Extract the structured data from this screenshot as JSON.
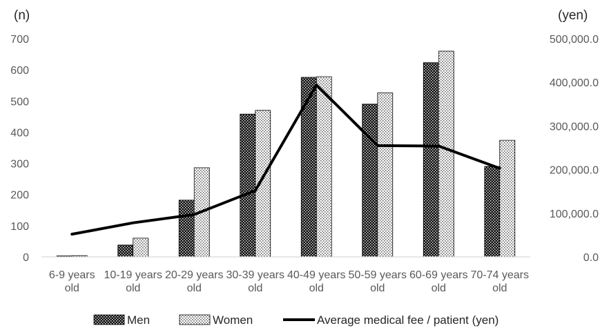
{
  "chart_data": {
    "type": "bar",
    "categories": [
      "6-9 years old",
      "10-19 years old",
      "20-29 years old",
      "30-39 years old",
      "40-49 years old",
      "50-59 years old",
      "60-69 years old",
      "70-74 years old"
    ],
    "category_lines": [
      [
        "6-9 years",
        "old"
      ],
      [
        "10-19 years",
        "old"
      ],
      [
        "20-29 years",
        "old"
      ],
      [
        "30-39 years",
        "old"
      ],
      [
        "40-49 years",
        "old"
      ],
      [
        "50-59 years",
        "old"
      ],
      [
        "60-69 years",
        "old"
      ],
      [
        "70-74 years",
        "old"
      ]
    ],
    "series": [
      {
        "name": "Men",
        "type": "bar",
        "axis": "left",
        "pattern": "dark-dotted",
        "values": [
          3,
          38,
          182,
          458,
          576,
          490,
          623,
          290
        ]
      },
      {
        "name": "Women",
        "type": "bar",
        "axis": "left",
        "pattern": "light-dotted",
        "values": [
          4,
          60,
          286,
          470,
          578,
          526,
          660,
          374
        ]
      },
      {
        "name": "Average medical fee / patient (yen)",
        "type": "line",
        "axis": "right",
        "color": "#000000",
        "values": [
          52000,
          78000,
          97000,
          152000,
          394000,
          255000,
          254000,
          203000
        ]
      }
    ],
    "y_left": {
      "unit_label": "(n)",
      "min": 0,
      "max": 700,
      "step": 100,
      "ticks": [
        "0",
        "100",
        "200",
        "300",
        "400",
        "500",
        "600",
        "700"
      ]
    },
    "y_right": {
      "unit_label": "(yen)",
      "min": 0,
      "max": 500000,
      "step": 100000,
      "ticks": [
        "0.0",
        "100,000.0",
        "200,000.0",
        "300,000.0",
        "400,000.0",
        "500,000.0"
      ]
    },
    "grid": false,
    "legend_position": "bottom",
    "legend": [
      "Men",
      "Women",
      "Average medical fee / patient (yen)"
    ]
  }
}
